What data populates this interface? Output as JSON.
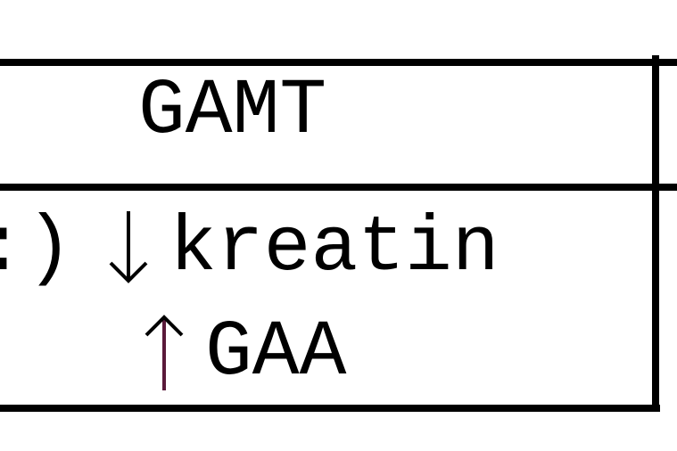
{
  "table": {
    "header": {
      "gene": "GAMT"
    },
    "row": {
      "left_fragment": ":)",
      "findings": [
        {
          "direction": "down",
          "icon": "arrow-down-icon",
          "label": "kreatin"
        },
        {
          "direction": "up",
          "icon": "arrow-up-icon",
          "label": "GAA"
        }
      ]
    }
  }
}
